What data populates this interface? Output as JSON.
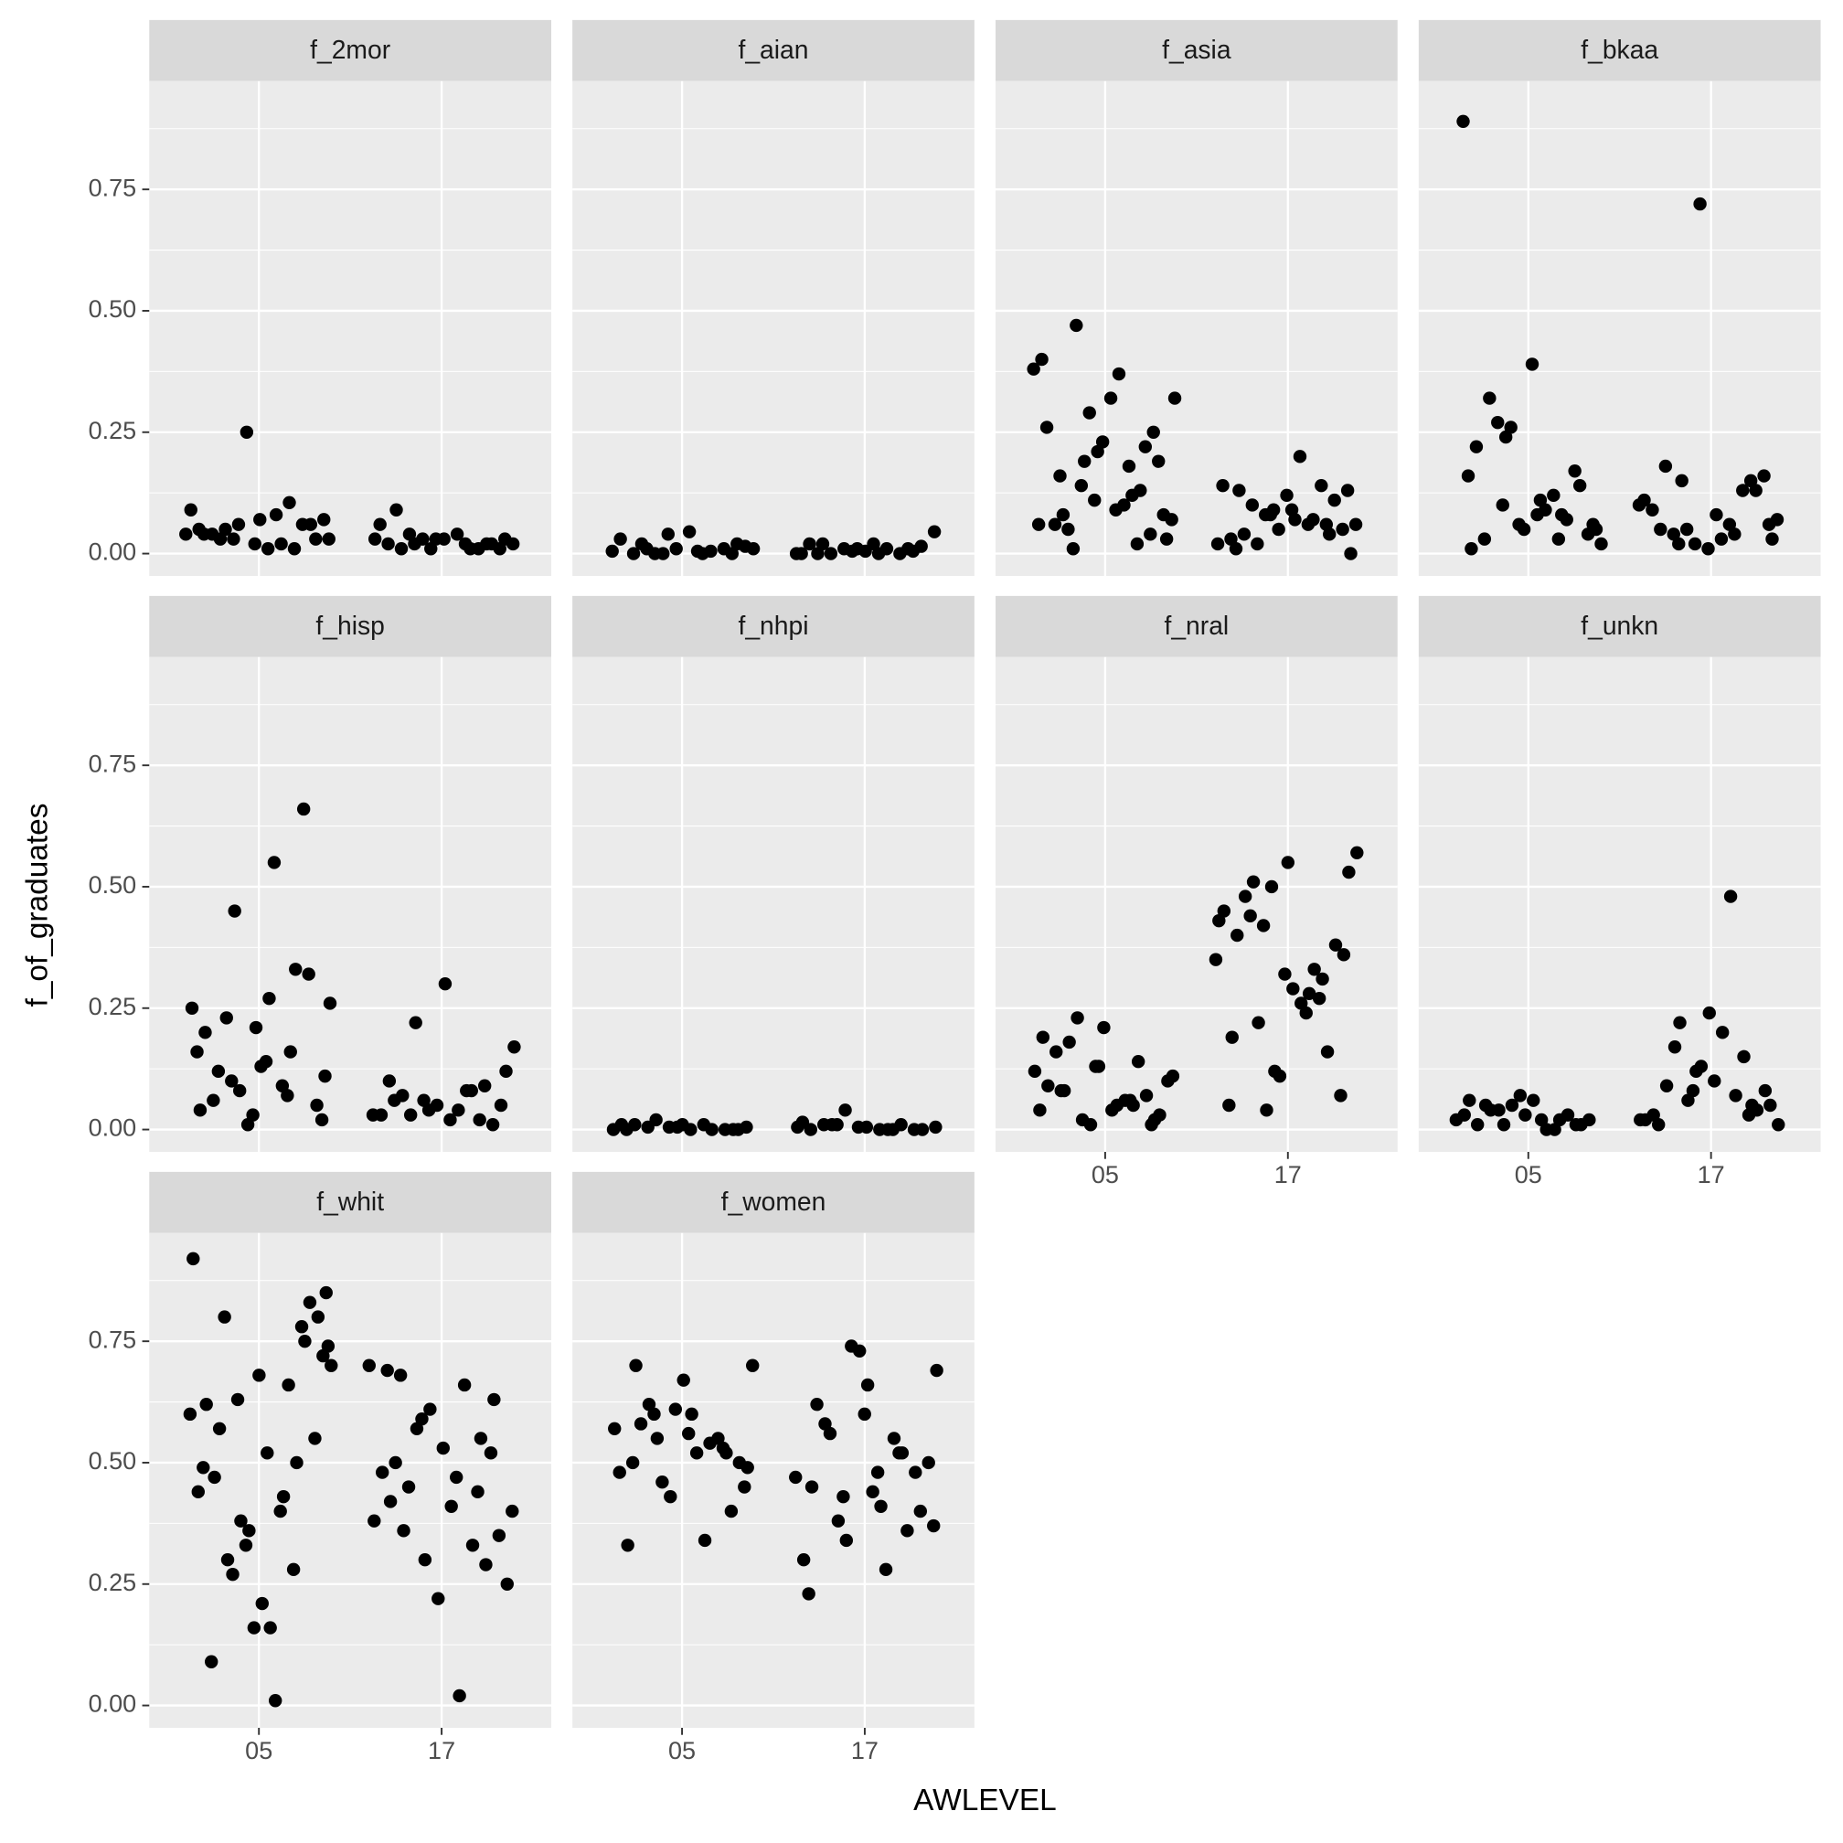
{
  "chart_data": {
    "type": "scatter",
    "xlabel": "AWLEVEL",
    "ylabel": "f_of_graduates",
    "categories": [
      "05",
      "17"
    ],
    "ylim": [
      -0.046,
      0.973
    ],
    "yticks": [
      {
        "value": 0,
        "label": "0.00"
      },
      {
        "value": 0.25,
        "label": "0.25"
      },
      {
        "value": 0.5,
        "label": "0.50"
      },
      {
        "value": 0.75,
        "label": "0.75"
      }
    ],
    "grid": true,
    "color": "#000000",
    "facets": [
      {
        "title": "f_2mor",
        "values": [
          [
            0.04,
            0.08,
            0.03,
            0.06,
            0.02,
            0.05,
            0.105,
            0.03,
            0.07,
            0.01,
            0.04,
            0.06,
            0.25,
            0.09,
            0.02,
            0.05,
            0.03,
            0.07,
            0.04,
            0.01,
            0.06,
            0.03
          ],
          [
            0.09,
            0.02,
            0.01,
            0.03,
            0.02,
            0.04,
            0.01,
            0.03,
            0.02,
            0.01,
            0.03,
            0.02,
            0.04,
            0.01,
            0.02,
            0.03,
            0.06,
            0.01,
            0.02,
            0.03
          ]
        ]
      },
      {
        "title": "f_aian",
        "values": [
          [
            0.0,
            0.01,
            0.005,
            0.02,
            0.0,
            0.01,
            0.03,
            0.005,
            0.0,
            0.015,
            0.045,
            0.0,
            0.01,
            0.04,
            0.005,
            0.0,
            0.01,
            0.02
          ],
          [
            0.02,
            0.0,
            0.01,
            0.005,
            0.0,
            0.01,
            0.0,
            0.015,
            0.005,
            0.02,
            0.0,
            0.01,
            0.045,
            0.0,
            0.02,
            0.005,
            0.01,
            0.0
          ]
        ]
      },
      {
        "title": "f_asia",
        "values": [
          [
            0.13,
            0.19,
            0.32,
            0.37,
            0.08,
            0.25,
            0.21,
            0.4,
            0.12,
            0.47,
            0.03,
            0.32,
            0.06,
            0.22,
            0.29,
            0.38,
            0.1,
            0.05,
            0.19,
            0.23,
            0.26,
            0.02,
            0.14,
            0.07,
            0.09,
            0.16,
            0.04,
            0.11,
            0.06,
            0.18,
            0.01,
            0.08
          ],
          [
            0.0,
            0.07,
            0.13,
            0.04,
            0.09,
            0.02,
            0.06,
            0.1,
            0.05,
            0.12,
            0.03,
            0.14,
            0.08,
            0.06,
            0.2,
            0.04,
            0.11,
            0.05,
            0.14,
            0.07,
            0.02,
            0.13,
            0.09,
            0.01,
            0.06,
            0.08
          ]
        ]
      },
      {
        "title": "f_bkaa",
        "values": [
          [
            0.01,
            0.08,
            0.24,
            0.05,
            0.11,
            0.03,
            0.17,
            0.06,
            0.89,
            0.12,
            0.27,
            0.04,
            0.39,
            0.22,
            0.07,
            0.26,
            0.02,
            0.09,
            0.32,
            0.14,
            0.05,
            0.16,
            0.03,
            0.1,
            0.06,
            0.08
          ],
          [
            0.15,
            0.03,
            0.08,
            0.05,
            0.15,
            0.02,
            0.1,
            0.06,
            0.04,
            0.16,
            0.01,
            0.09,
            0.13,
            0.05,
            0.07,
            0.03,
            0.18,
            0.13,
            0.72,
            0.11,
            0.04,
            0.02,
            0.06
          ]
        ]
      },
      {
        "title": "f_hisp",
        "values": [
          [
            0.21,
            0.04,
            0.16,
            0.45,
            0.11,
            0.27,
            0.06,
            0.66,
            0.01,
            0.25,
            0.09,
            0.23,
            0.05,
            0.13,
            0.2,
            0.33,
            0.08,
            0.26,
            0.55,
            0.12,
            0.32,
            0.03,
            0.16,
            0.07,
            0.1,
            0.02,
            0.14
          ],
          [
            0.08,
            0.03,
            0.05,
            0.3,
            0.1,
            0.02,
            0.06,
            0.17,
            0.04,
            0.07,
            0.01,
            0.05,
            0.03,
            0.08,
            0.22,
            0.12,
            0.02,
            0.06,
            0.09,
            0.04,
            0.03
          ]
        ]
      },
      {
        "title": "f_nhpi",
        "values": [
          [
            0.0,
            0.005,
            0.01,
            0.0,
            0.02,
            0.005,
            0.0,
            0.01,
            0.0,
            0.005,
            0.0,
            0.01,
            0.005,
            0.0,
            0.01,
            0.0
          ],
          [
            0.005,
            0.0,
            0.01,
            0.0,
            0.005,
            0.0,
            0.01,
            0.04,
            0.005,
            0.0,
            0.01,
            0.0,
            0.005,
            0.015,
            0.0,
            0.01
          ]
        ]
      },
      {
        "title": "f_nral",
        "values": [
          [
            0.08,
            0.02,
            0.13,
            0.19,
            0.05,
            0.23,
            0.1,
            0.04,
            0.16,
            0.07,
            0.01,
            0.12,
            0.06,
            0.18,
            0.03,
            0.21,
            0.09,
            0.14,
            0.02,
            0.11,
            0.05,
            0.08,
            0.01,
            0.13,
            0.04,
            0.06
          ],
          [
            0.12,
            0.43,
            0.28,
            0.51,
            0.36,
            0.55,
            0.19,
            0.31,
            0.04,
            0.57,
            0.26,
            0.48,
            0.38,
            0.11,
            0.45,
            0.33,
            0.22,
            0.53,
            0.29,
            0.4,
            0.16,
            0.5,
            0.35,
            0.24,
            0.44,
            0.07,
            0.32,
            0.05,
            0.27,
            0.42
          ]
        ]
      },
      {
        "title": "f_unkn",
        "values": [
          [
            0.02,
            0.05,
            0.01,
            0.07,
            0.03,
            0.0,
            0.04,
            0.02,
            0.06,
            0.01,
            0.03,
            0.05,
            0.02,
            0.0,
            0.04,
            0.01,
            0.03,
            0.06,
            0.02,
            0.01
          ],
          [
            0.05,
            0.12,
            0.02,
            0.48,
            0.17,
            0.08,
            0.24,
            0.03,
            0.15,
            0.06,
            0.01,
            0.2,
            0.09,
            0.04,
            0.13,
            0.02,
            0.07,
            0.22,
            0.05,
            0.1,
            0.01,
            0.03,
            0.08
          ]
        ]
      },
      {
        "title": "f_whit",
        "values": [
          [
            0.85,
            0.16,
            0.47,
            0.75,
            0.36,
            0.92,
            0.43,
            0.3,
            0.8,
            0.21,
            0.62,
            0.5,
            0.38,
            0.7,
            0.01,
            0.57,
            0.83,
            0.16,
            0.44,
            0.66,
            0.27,
            0.72,
            0.52,
            0.09,
            0.78,
            0.33,
            0.6,
            0.4,
            0.8,
            0.55,
            0.68,
            0.49,
            0.28,
            0.63,
            0.74
          ],
          [
            0.42,
            0.55,
            0.3,
            0.7,
            0.02,
            0.36,
            0.63,
            0.22,
            0.48,
            0.33,
            0.57,
            0.25,
            0.41,
            0.5,
            0.29,
            0.61,
            0.38,
            0.66,
            0.45,
            0.35,
            0.53,
            0.69,
            0.44,
            0.59,
            0.4,
            0.47,
            0.68,
            0.52
          ]
        ]
      },
      {
        "title": "f_women",
        "values": [
          [
            0.55,
            0.49,
            0.6,
            0.7,
            0.52,
            0.43,
            0.57,
            0.34,
            0.62,
            0.5,
            0.67,
            0.33,
            0.55,
            0.46,
            0.7,
            0.52,
            0.58,
            0.4,
            0.61,
            0.48,
            0.54,
            0.6,
            0.45,
            0.56,
            0.5,
            0.53
          ],
          [
            0.66,
            0.45,
            0.52,
            0.34,
            0.69,
            0.41,
            0.58,
            0.48,
            0.73,
            0.3,
            0.55,
            0.38,
            0.5,
            0.44,
            0.62,
            0.36,
            0.74,
            0.47,
            0.28,
            0.56,
            0.4,
            0.6,
            0.23,
            0.52,
            0.43,
            0.37,
            0.48
          ]
        ]
      }
    ]
  }
}
